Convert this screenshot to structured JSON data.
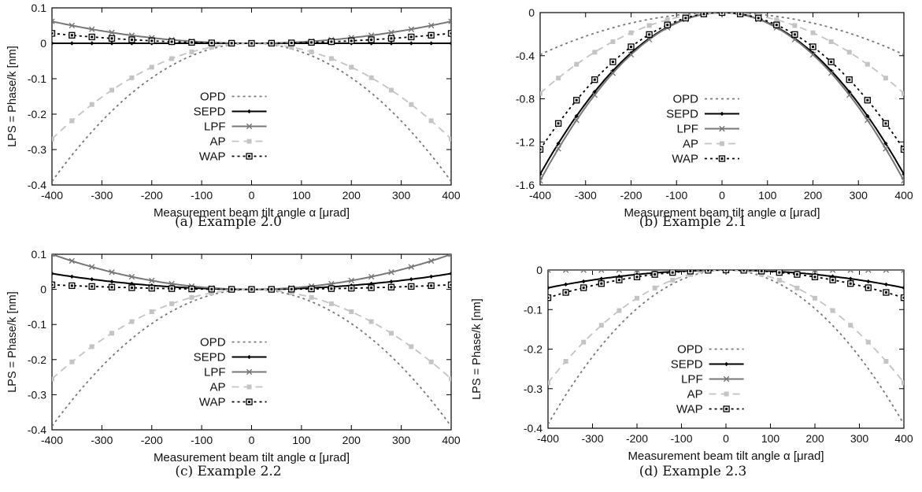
{
  "chart_data": [
    {
      "type": "line",
      "caption": "(a) Example 2.0",
      "xlabel": "Measurement beam tilt angle α [μrad]",
      "ylabel": "LPS = Phase/k [nm]",
      "xlim": [
        -400,
        400
      ],
      "ylim": [
        -0.4,
        0.1
      ],
      "xticks": [
        -400,
        -300,
        -200,
        -100,
        0,
        100,
        200,
        300,
        400
      ],
      "yticks": [
        -0.4,
        -0.3,
        -0.2,
        -0.1,
        0,
        0.1
      ],
      "ytick_labels": [
        "-0.4",
        "-0.3",
        "-0.2",
        "-0.1",
        "0",
        "0.1"
      ],
      "legend": "center-left",
      "series": [
        {
          "name": "OPD",
          "color": "#777777",
          "style": "dotted",
          "marker": "none",
          "coef": -0.39
        },
        {
          "name": "SEPD",
          "color": "#000000",
          "style": "solid",
          "marker": "diamond",
          "coef": 0.0
        },
        {
          "name": "LPF",
          "color": "#777777",
          "style": "solid",
          "marker": "x",
          "coef": 0.062
        },
        {
          "name": "AP",
          "color": "#c4c4c4",
          "style": "dashed",
          "marker": "square",
          "coef": -0.27
        },
        {
          "name": "WAP",
          "color": "#000000",
          "style": "dotted",
          "marker": "boxsquare",
          "coef": 0.028
        }
      ]
    },
    {
      "type": "line",
      "caption": "(b) Example 2.1",
      "xlabel": "Measurement beam tilt angle α [μrad]",
      "ylabel": "",
      "xlim": [
        -400,
        400
      ],
      "ylim": [
        -1.6,
        0.0
      ],
      "xticks": [
        -400,
        -300,
        -200,
        -100,
        0,
        100,
        200,
        300,
        400
      ],
      "yticks": [
        -1.6,
        -1.2,
        -0.8,
        -0.4,
        0
      ],
      "ytick_labels": [
        "-1.6",
        "-1.2",
        "-0.8",
        "-0.4",
        "0"
      ],
      "legend": "center-left",
      "series": [
        {
          "name": "OPD",
          "color": "#777777",
          "style": "dotted",
          "marker": "none",
          "coef": -0.39
        },
        {
          "name": "SEPD",
          "color": "#000000",
          "style": "solid",
          "marker": "diamond",
          "coef": -1.5
        },
        {
          "name": "LPF",
          "color": "#777777",
          "style": "solid",
          "marker": "x",
          "coef": -1.56
        },
        {
          "name": "AP",
          "color": "#c4c4c4",
          "style": "dashed",
          "marker": "square",
          "coef": -0.75
        },
        {
          "name": "WAP",
          "color": "#000000",
          "style": "dotted",
          "marker": "boxsquare",
          "coef": -1.27
        }
      ]
    },
    {
      "type": "line",
      "caption": "(c) Example 2.2",
      "xlabel": "Measurement beam tilt angle α [μrad]",
      "ylabel": "LPS = Phase/k [nm]",
      "xlim": [
        -400,
        400
      ],
      "ylim": [
        -0.4,
        0.1
      ],
      "xticks": [
        -400,
        -300,
        -200,
        -100,
        0,
        100,
        200,
        300,
        400
      ],
      "yticks": [
        -0.4,
        -0.3,
        -0.2,
        -0.1,
        0,
        0.1
      ],
      "ytick_labels": [
        "-0.4",
        "-0.3",
        "-0.2",
        "-0.1",
        "0",
        "0.1"
      ],
      "legend": "center-left",
      "series": [
        {
          "name": "OPD",
          "color": "#777777",
          "style": "dotted",
          "marker": "none",
          "coef": -0.39
        },
        {
          "name": "SEPD",
          "color": "#000000",
          "style": "solid",
          "marker": "diamond",
          "coef": 0.045
        },
        {
          "name": "LPF",
          "color": "#777777",
          "style": "solid",
          "marker": "x",
          "coef": 0.1
        },
        {
          "name": "AP",
          "color": "#c4c4c4",
          "style": "dashed",
          "marker": "square",
          "coef": -0.255
        },
        {
          "name": "WAP",
          "color": "#000000",
          "style": "dotted",
          "marker": "boxsquare",
          "coef": 0.013
        }
      ]
    },
    {
      "type": "line",
      "caption": "(d) Example 2.3",
      "xlabel": "Measurement beam tilt angle α [μrad]",
      "ylabel": "LPS = Phase/k [nm]",
      "xlim": [
        -400,
        400
      ],
      "ylim": [
        -0.4,
        0.0
      ],
      "xticks": [
        -400,
        -300,
        -200,
        -100,
        0,
        100,
        200,
        300,
        400
      ],
      "yticks": [
        -0.4,
        -0.3,
        -0.2,
        -0.1,
        0
      ],
      "ytick_labels": [
        "-0.4",
        "-0.3",
        "-0.2",
        "-0.1",
        "0"
      ],
      "legend": "center-left",
      "series": [
        {
          "name": "OPD",
          "color": "#777777",
          "style": "dotted",
          "marker": "none",
          "coef": -0.39
        },
        {
          "name": "SEPD",
          "color": "#000000",
          "style": "solid",
          "marker": "diamond",
          "coef": -0.045
        },
        {
          "name": "LPF",
          "color": "#777777",
          "style": "solid",
          "marker": "x",
          "coef": 0.0
        },
        {
          "name": "AP",
          "color": "#c4c4c4",
          "style": "dashed",
          "marker": "square",
          "coef": -0.285
        },
        {
          "name": "WAP",
          "color": "#000000",
          "style": "dotted",
          "marker": "boxsquare",
          "coef": -0.07
        }
      ]
    }
  ]
}
